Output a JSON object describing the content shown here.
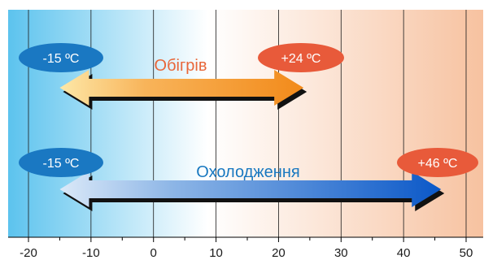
{
  "axis": {
    "min": -20,
    "max": 50,
    "ticks": [
      -20,
      -10,
      0,
      10,
      20,
      30,
      40,
      50
    ],
    "tick_labels": [
      "-20",
      "-10",
      "0",
      "10",
      "20",
      "30",
      "40",
      "50"
    ]
  },
  "colors": {
    "cold": "#5cc3ee",
    "neutral": "#ffffff",
    "warm": "#f7c2a0",
    "badge_blue": "#1a78c2",
    "badge_red": "#e85a3a",
    "heating_title": "#e8673a",
    "cooling_title": "#1878c0"
  },
  "heating": {
    "title": "Обігрів",
    "from": -15,
    "to": 24,
    "from_label": "-15 ºC",
    "to_label": "+24 ºC"
  },
  "cooling": {
    "title": "Охолодження",
    "from": -15,
    "to": 46,
    "from_label": "-15 ºC",
    "to_label": "+46 ºC"
  }
}
